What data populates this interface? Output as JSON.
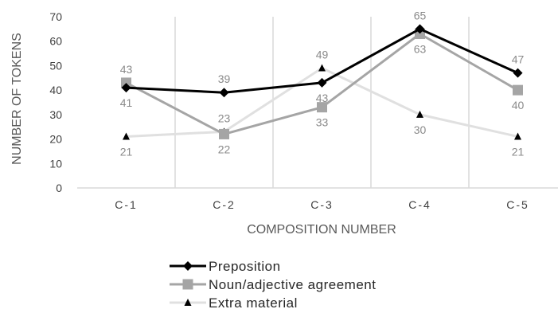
{
  "chart_data": {
    "type": "line",
    "categories": [
      "C-1",
      "C-2",
      "C-3",
      "C-4",
      "C-5"
    ],
    "xlabel": "COMPOSITION NUMBER",
    "ylabel": "NUMBER OF TOKENS",
    "ylim": [
      0,
      70
    ],
    "yticks": [
      0,
      10,
      20,
      30,
      40,
      50,
      60,
      70
    ],
    "grid": "vertical",
    "legend": "bottom",
    "series": [
      {
        "name": "Preposition",
        "values": [
          41,
          39,
          43,
          65,
          47
        ],
        "color": "#000000",
        "marker": "diamond",
        "labels": [
          "41",
          "39",
          "43",
          "65",
          "47"
        ],
        "label_pos": [
          "below",
          "above",
          "below",
          "above",
          "above"
        ]
      },
      {
        "name": "Noun/adjective agreement",
        "values": [
          43,
          22,
          33,
          63,
          40
        ],
        "color": "#a5a5a5",
        "marker": "square",
        "labels": [
          "43",
          "22",
          "33",
          "63",
          "40"
        ],
        "label_pos": [
          "above",
          "below",
          "below",
          "below",
          "below"
        ]
      },
      {
        "name": "Extra material",
        "values": [
          21,
          23,
          49,
          30,
          21
        ],
        "color": "#e0e0e0",
        "marker": "triangle",
        "labels": [
          "21",
          "23",
          "49",
          "30",
          "21"
        ],
        "label_pos": [
          "below",
          "above",
          "above",
          "below",
          "below"
        ]
      }
    ]
  }
}
